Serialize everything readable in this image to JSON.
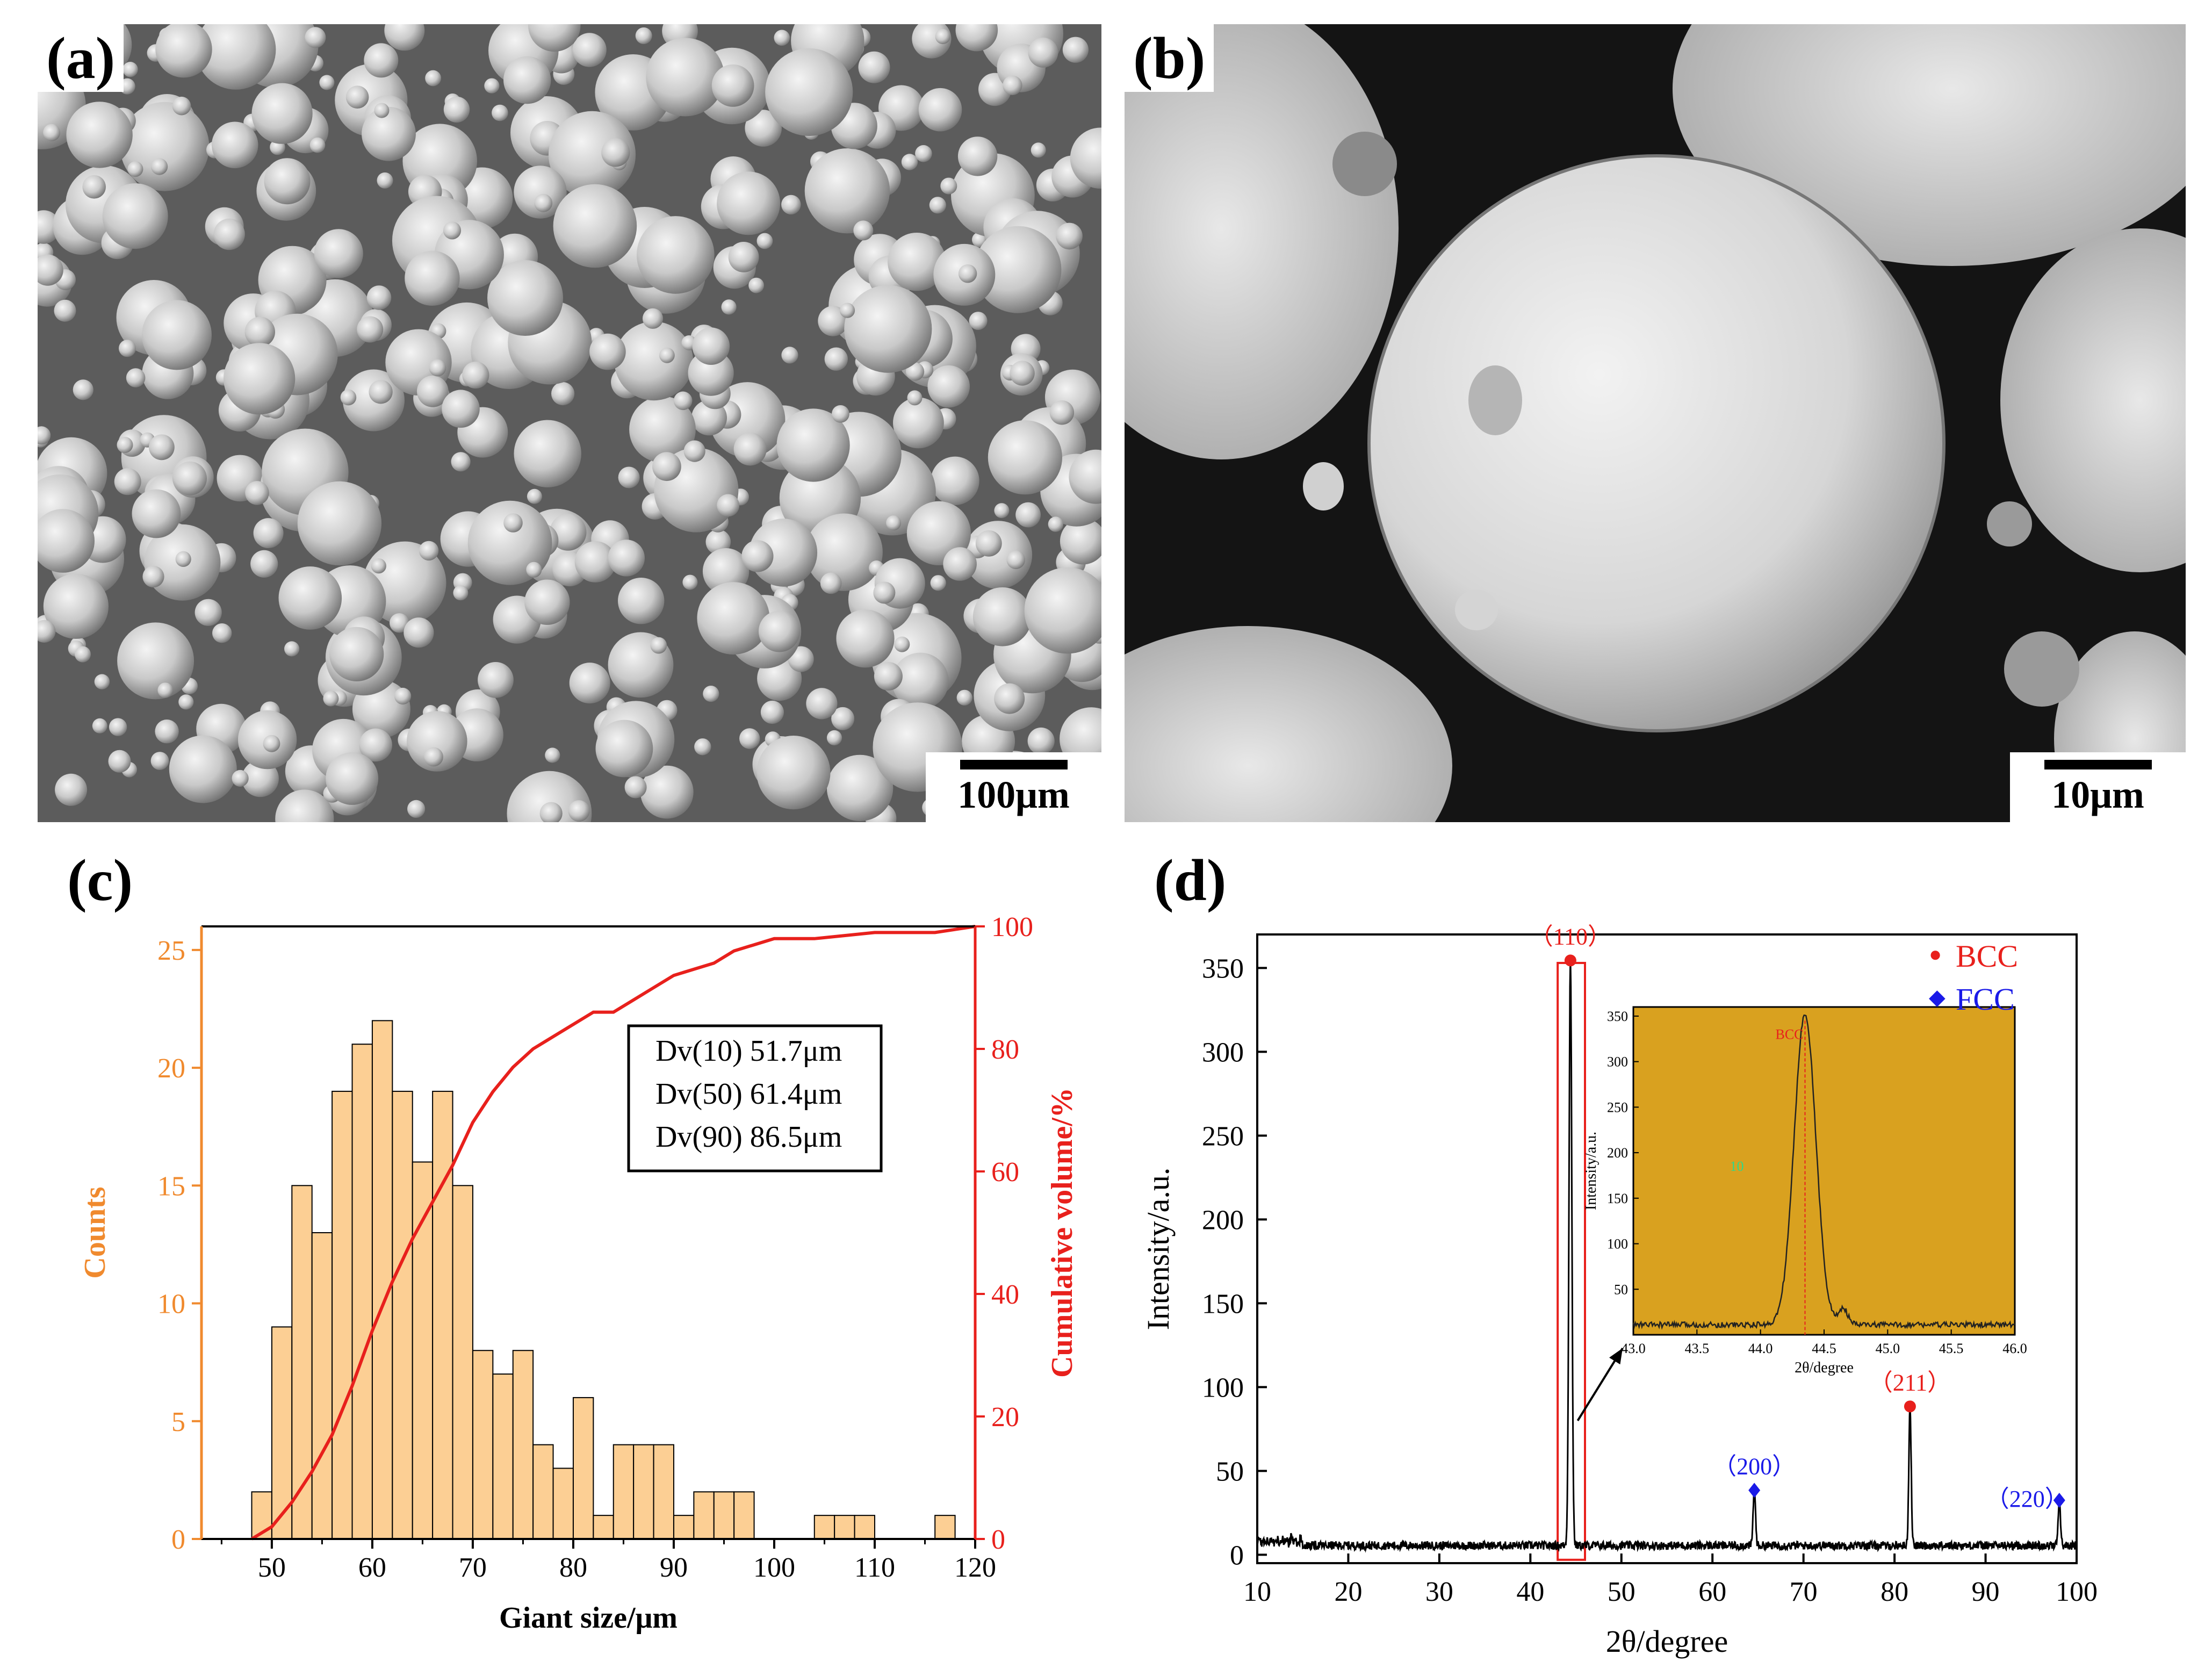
{
  "panels": {
    "a": {
      "letter": "(a)",
      "scale": "100μm"
    },
    "b": {
      "letter": "(b)",
      "scale": "10μm"
    },
    "c": {
      "letter": "(c)"
    },
    "d": {
      "letter": "(d)"
    }
  },
  "colors": {
    "hist_fill": "#fccf94",
    "hist_axis": "#f08a2e",
    "cumulative": "#e8201c",
    "bcc": "#e8201c",
    "fcc": "#1a1ae8",
    "inset_bg": "#d9a11f"
  },
  "chart_data": [
    {
      "type": "bar",
      "xlabel": "Giant size/μm",
      "ylabel": "Counts",
      "y2label": "Cumulative volume/%",
      "xlim": [
        43,
        120
      ],
      "ylim": [
        0,
        26
      ],
      "y2lim": [
        0,
        100
      ],
      "xticks": [
        50,
        60,
        70,
        80,
        90,
        100,
        110,
        120
      ],
      "yticks": [
        0,
        5,
        10,
        15,
        20,
        25
      ],
      "y2ticks": [
        0,
        20,
        40,
        60,
        80,
        100
      ],
      "bin_width": 2,
      "bin_starts": [
        48,
        50,
        52,
        54,
        56,
        58,
        60,
        62,
        64,
        66,
        68,
        70,
        72,
        74,
        76,
        78,
        80,
        82,
        84,
        86,
        88,
        90,
        92,
        94,
        96,
        98,
        100,
        102,
        104,
        106,
        108,
        110,
        112,
        114,
        116,
        118
      ],
      "counts": [
        2,
        9,
        15,
        13,
        19,
        21,
        22,
        19,
        16,
        19,
        15,
        8,
        7,
        8,
        4,
        3,
        6,
        1,
        4,
        4,
        4,
        1,
        2,
        2,
        2,
        0,
        0,
        0,
        1,
        1,
        1,
        0,
        0,
        0,
        1,
        0
      ],
      "cumulative": {
        "x": [
          48,
          50,
          52,
          54,
          56,
          58,
          60,
          62,
          64,
          66,
          68,
          70,
          72,
          74,
          76,
          78,
          80,
          82,
          84,
          86,
          88,
          90,
          92,
          94,
          96,
          98,
          100,
          104,
          110,
          116,
          120
        ],
        "y": [
          0,
          2,
          6,
          11,
          17,
          25,
          34,
          42,
          49,
          55,
          61,
          68,
          73,
          77,
          80,
          82,
          84,
          86,
          86,
          88,
          90,
          92,
          93,
          94,
          96,
          97,
          98,
          98,
          99,
          99,
          100
        ]
      },
      "legend": [
        "Dv(10) 51.7μm",
        "Dv(50) 61.4μm",
        "Dv(90) 86.5μm"
      ]
    },
    {
      "type": "line",
      "xlabel": "2θ/degree",
      "ylabel": "Intensity/a.u.",
      "xlim": [
        10,
        100
      ],
      "ylim": [
        -5,
        370
      ],
      "xticks": [
        10,
        20,
        30,
        40,
        50,
        60,
        70,
        80,
        90,
        100
      ],
      "yticks": [
        0,
        50,
        100,
        150,
        200,
        250,
        300,
        350
      ],
      "peaks": [
        {
          "x": 44.4,
          "y": 350,
          "phase": "BCC",
          "label": "（110）"
        },
        {
          "x": 64.6,
          "y": 34,
          "phase": "FCC",
          "label": "（200）"
        },
        {
          "x": 81.7,
          "y": 84,
          "phase": "BCC",
          "label": "（211）"
        },
        {
          "x": 98.1,
          "y": 28,
          "phase": "FCC",
          "label": "（220）"
        }
      ],
      "legend": [
        {
          "marker": "●",
          "name": "BCC"
        },
        {
          "marker": "◆",
          "name": "FCC"
        }
      ],
      "inset": {
        "xlabel": "2θ/degree",
        "ylabel": "Intensity/a.u.",
        "xlim": [
          43.0,
          46.0
        ],
        "ylim": [
          0,
          360
        ],
        "xticks": [
          "43.0",
          "43.5",
          "44.0",
          "44.5",
          "45.0",
          "45.5",
          "46.0"
        ],
        "yticks": [
          50,
          100,
          150,
          200,
          250,
          300,
          350
        ],
        "annotations": [
          "BCC",
          "10"
        ],
        "peak_x": 44.35
      }
    }
  ]
}
